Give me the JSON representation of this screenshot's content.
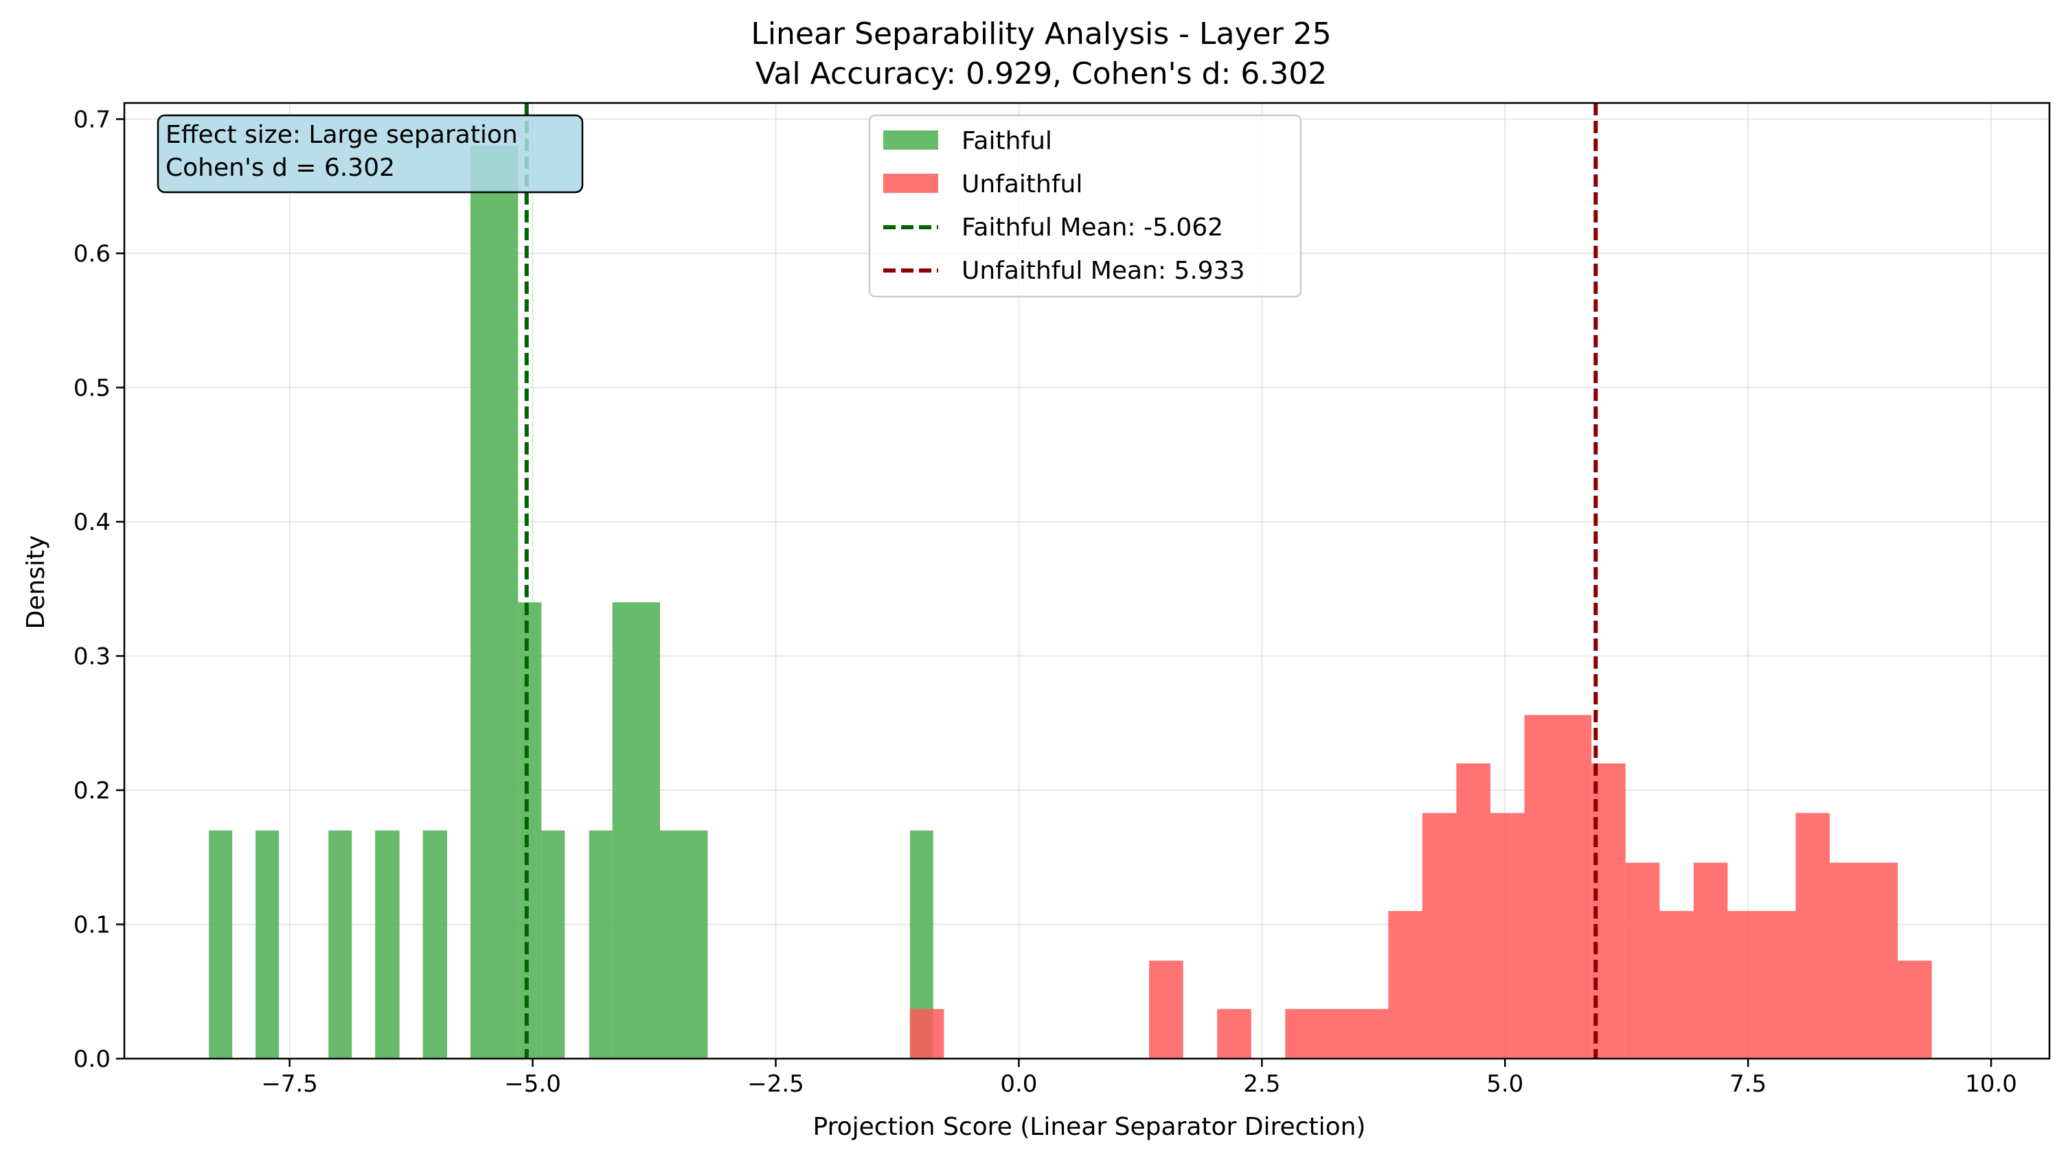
{
  "chart_data": {
    "type": "histogram",
    "title": "Linear Separability Analysis - Layer 25",
    "subtitle": "Val Accuracy: 0.929, Cohen's d: 6.302",
    "xlabel": "Projection Score (Linear Separator Direction)",
    "ylabel": "Density",
    "xlim": [
      -9.2,
      10.6
    ],
    "ylim": [
      0,
      0.712
    ],
    "xticks": [
      -7.5,
      -5.0,
      -2.5,
      0.0,
      2.5,
      5.0,
      7.5,
      10.0
    ],
    "xtick_labels": [
      "−7.5",
      "−5.0",
      "−2.5",
      "0.0",
      "2.5",
      "5.0",
      "7.5",
      "10.0"
    ],
    "yticks": [
      0.0,
      0.1,
      0.2,
      0.3,
      0.4,
      0.5,
      0.6,
      0.7
    ],
    "ytick_labels": [
      "0.0",
      "0.1",
      "0.2",
      "0.3",
      "0.4",
      "0.5",
      "0.6",
      "0.7"
    ],
    "grid": true,
    "legend_position": "top-center",
    "series": [
      {
        "name": "Faithful",
        "color": "#4caf50",
        "bins": [
          {
            "x0": -8.33,
            "x1": -8.09,
            "density": 0.17
          },
          {
            "x0": -7.85,
            "x1": -7.61,
            "density": 0.17
          },
          {
            "x0": -7.1,
            "x1": -6.86,
            "density": 0.17
          },
          {
            "x0": -6.62,
            "x1": -6.37,
            "density": 0.17
          },
          {
            "x0": -6.13,
            "x1": -5.88,
            "density": 0.17
          },
          {
            "x0": -5.64,
            "x1": -5.15,
            "density": 0.68
          },
          {
            "x0": -5.15,
            "x1": -4.91,
            "density": 0.34
          },
          {
            "x0": -4.91,
            "x1": -4.67,
            "density": 0.17
          },
          {
            "x0": -4.42,
            "x1": -4.18,
            "density": 0.17
          },
          {
            "x0": -4.18,
            "x1": -3.69,
            "density": 0.34
          },
          {
            "x0": -3.69,
            "x1": -3.2,
            "density": 0.17
          },
          {
            "x0": -1.12,
            "x1": -0.88,
            "density": 0.17
          }
        ]
      },
      {
        "name": "Unfaithful",
        "color": "#ff5a5a",
        "bins": [
          {
            "x0": -1.12,
            "x1": -0.77,
            "density": 0.037
          },
          {
            "x0": 1.34,
            "x1": 1.69,
            "density": 0.073
          },
          {
            "x0": 2.04,
            "x1": 2.39,
            "density": 0.037
          },
          {
            "x0": 2.74,
            "x1": 3.8,
            "density": 0.037
          },
          {
            "x0": 3.8,
            "x1": 4.15,
            "density": 0.11
          },
          {
            "x0": 4.15,
            "x1": 4.5,
            "density": 0.183
          },
          {
            "x0": 4.5,
            "x1": 4.85,
            "density": 0.22
          },
          {
            "x0": 4.85,
            "x1": 5.2,
            "density": 0.183
          },
          {
            "x0": 5.2,
            "x1": 5.89,
            "density": 0.256
          },
          {
            "x0": 5.89,
            "x1": 6.24,
            "density": 0.22
          },
          {
            "x0": 6.24,
            "x1": 6.59,
            "density": 0.146
          },
          {
            "x0": 6.59,
            "x1": 6.94,
            "density": 0.11
          },
          {
            "x0": 6.94,
            "x1": 7.29,
            "density": 0.146
          },
          {
            "x0": 7.29,
            "x1": 7.99,
            "density": 0.11
          },
          {
            "x0": 7.99,
            "x1": 8.34,
            "density": 0.183
          },
          {
            "x0": 8.34,
            "x1": 9.04,
            "density": 0.146
          },
          {
            "x0": 9.04,
            "x1": 9.39,
            "density": 0.073
          }
        ]
      }
    ],
    "mean_lines": [
      {
        "name": "Faithful Mean: -5.062",
        "x": -5.062,
        "color": "#006400"
      },
      {
        "name": "Unfaithful Mean: 5.933",
        "x": 5.933,
        "color": "#8b0000"
      }
    ],
    "annotation": {
      "line1": "Effect size: Large separation",
      "line2": "Cohen's d = 6.302",
      "bg": "#add8e6"
    }
  }
}
